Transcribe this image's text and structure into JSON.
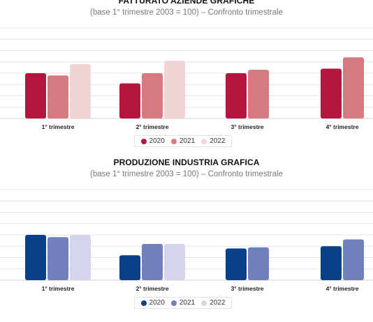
{
  "chart_data": [
    {
      "type": "bar",
      "title": "FATTURATO AZIENDE GRAFICHE",
      "subtitle": "(base 1° trimestre 2003 = 100) – Confronto trimestrale",
      "categories": [
        "1° trimestre",
        "2° trimestre",
        "3° trimestre",
        "4° trimestre"
      ],
      "series": [
        {
          "name": "2020",
          "color": "#b5163f",
          "values": [
            40,
            31,
            40,
            44
          ]
        },
        {
          "name": "2021",
          "color": "#d67a80",
          "values": [
            38,
            40,
            43,
            54
          ]
        },
        {
          "name": "2022",
          "color": "#f0d4d6",
          "values": [
            48,
            51,
            null,
            null
          ]
        }
      ],
      "ylim": [
        0,
        80
      ],
      "grid": true,
      "legend": "bottom-center"
    },
    {
      "type": "bar",
      "title": "PRODUZIONE INDUSTRIA GRAFICA",
      "subtitle": "(base 1° trimestre 2003 = 100) – Confronto trimestrale",
      "categories": [
        "1° trimestre",
        "2° trimestre",
        "3° trimestre",
        "4° trimestre"
      ],
      "series": [
        {
          "name": "2020",
          "color": "#08418a",
          "values": [
            40,
            22,
            28,
            30
          ]
        },
        {
          "name": "2021",
          "color": "#7080ba",
          "values": [
            38,
            32,
            29,
            36
          ]
        },
        {
          "name": "2022",
          "color": "#d3d6eb",
          "values": [
            40,
            32,
            null,
            null
          ]
        }
      ],
      "ylim": [
        0,
        80
      ],
      "grid": true,
      "legend": "bottom-center"
    }
  ]
}
